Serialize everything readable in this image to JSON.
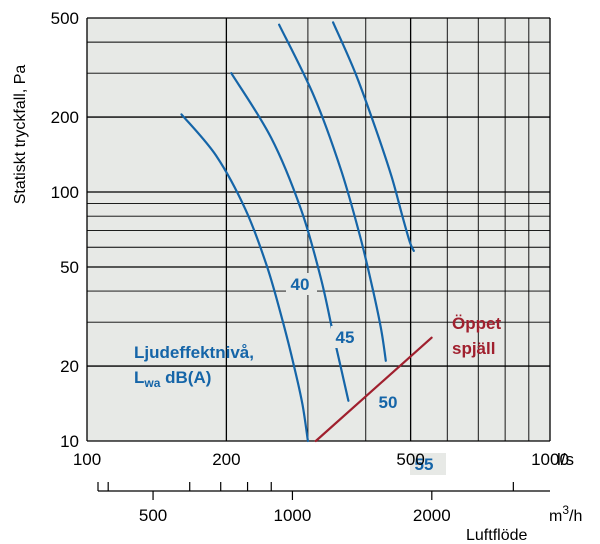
{
  "chart_data": {
    "type": "line",
    "title": "",
    "xlabel_unit": "l/s",
    "x_secondary_unit": "m3/h",
    "x_secondary_unit_base": "m",
    "x_secondary_unit_sup": "3",
    "x_secondary_unit_rest": "/h",
    "x_secondary_label": "Luftflöde",
    "ylabel": "Statiskt tryckfall, Pa",
    "x_scale": "log",
    "y_scale": "log",
    "xlim": [
      100,
      1000
    ],
    "ylim": [
      10,
      500
    ],
    "grid": true,
    "x_ticks": [
      100,
      200,
      500,
      1000
    ],
    "x_tick_labels": [
      "100",
      "200",
      "500",
      "1000"
    ],
    "y_ticks": [
      10,
      20,
      50,
      100,
      200,
      500
    ],
    "y_tick_labels": [
      "10",
      "20",
      "50",
      "100",
      "200",
      "500"
    ],
    "x_secondary_ticks": [
      500,
      1000,
      2000
    ],
    "x_secondary_tick_labels": [
      "500",
      "1000",
      "2000"
    ],
    "legend_title_line1": "Ljudeffektnivå,",
    "legend_title_line2_base": "L",
    "legend_title_line2_sub": "wa",
    "legend_title_line2_rest": " dB(A)",
    "series": [
      {
        "name": "40",
        "color": "#1565a8",
        "x": [
          160,
          190,
          220,
          245,
          265,
          280,
          292,
          300
        ],
        "y": [
          205,
          140,
          85,
          50,
          30,
          20,
          14,
          10
        ]
      },
      {
        "name": "45",
        "color": "#1565a8",
        "x": [
          205,
          250,
          290,
          320,
          340,
          355,
          367
        ],
        "y": [
          300,
          165,
          85,
          45,
          27,
          19,
          14.5
        ]
      },
      {
        "name": "50",
        "color": "#1565a8",
        "x": [
          260,
          310,
          355,
          390,
          415,
          432,
          442
        ],
        "y": [
          470,
          240,
          120,
          65,
          40,
          28,
          21
        ]
      },
      {
        "name": "55",
        "color": "#1565a8",
        "x": [
          340,
          380,
          420,
          455,
          480,
          498,
          508
        ],
        "y": [
          480,
          300,
          180,
          115,
          80,
          63,
          58
        ]
      },
      {
        "name": "Öppet spjäll",
        "color": "#a0202e",
        "x": [
          312,
          555
        ],
        "y": [
          10,
          26
        ]
      }
    ],
    "red_label_line1": "Öppet",
    "red_label_line2": "spjäll"
  }
}
